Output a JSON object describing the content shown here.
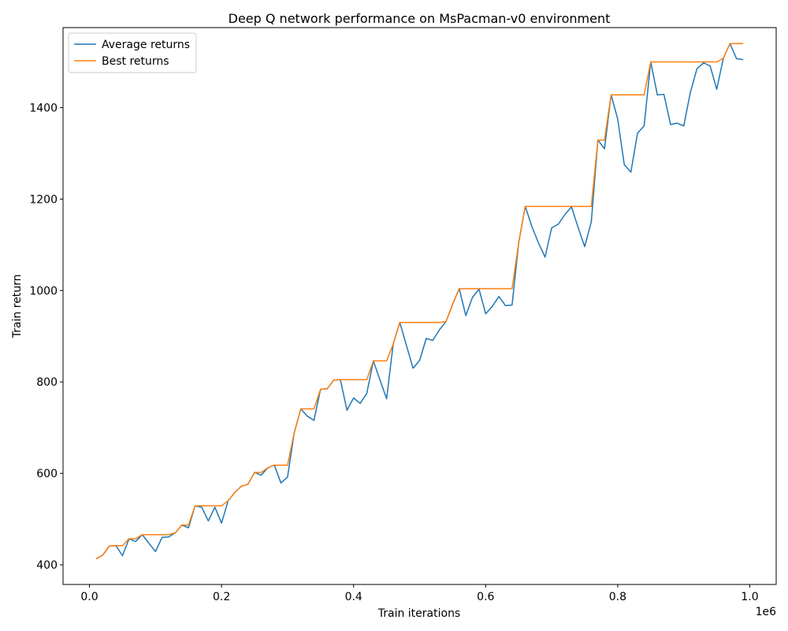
{
  "chart_data": {
    "type": "line",
    "title": "Deep Q network performance on MsPacman-v0 environment",
    "xlabel": "Train iterations",
    "ylabel": "Train return",
    "x_scale_label": "1e6",
    "xlim": [
      -0.04,
      1.04
    ],
    "ylim": [
      357,
      1575
    ],
    "x_ticks": [
      0.0,
      0.2,
      0.4,
      0.6,
      0.8,
      1.0
    ],
    "x_tick_labels": [
      "0.0",
      "0.2",
      "0.4",
      "0.6",
      "0.8",
      "1.0"
    ],
    "y_ticks": [
      400,
      600,
      800,
      1000,
      1200,
      1400
    ],
    "y_tick_labels": [
      "400",
      "600",
      "800",
      "1000",
      "1200",
      "1400"
    ],
    "grid": false,
    "legend_position": "top-left",
    "x": [
      0.01,
      0.02,
      0.03,
      0.04,
      0.05,
      0.06,
      0.07,
      0.08,
      0.09,
      0.1,
      0.11,
      0.12,
      0.13,
      0.14,
      0.15,
      0.16,
      0.17,
      0.18,
      0.19,
      0.2,
      0.21,
      0.22,
      0.23,
      0.24,
      0.25,
      0.26,
      0.27,
      0.28,
      0.29,
      0.3,
      0.31,
      0.32,
      0.33,
      0.34,
      0.35,
      0.36,
      0.37,
      0.38,
      0.39,
      0.4,
      0.41,
      0.42,
      0.43,
      0.44,
      0.45,
      0.46,
      0.47,
      0.48,
      0.49,
      0.5,
      0.51,
      0.52,
      0.53,
      0.54,
      0.55,
      0.56,
      0.57,
      0.58,
      0.59,
      0.6,
      0.61,
      0.62,
      0.63,
      0.64,
      0.65,
      0.66,
      0.67,
      0.68,
      0.69,
      0.7,
      0.71,
      0.72,
      0.73,
      0.74,
      0.75,
      0.76,
      0.77,
      0.78,
      0.79,
      0.8,
      0.81,
      0.82,
      0.83,
      0.84,
      0.85,
      0.86,
      0.87,
      0.88,
      0.89,
      0.9,
      0.91,
      0.92,
      0.93,
      0.94,
      0.95,
      0.96,
      0.97,
      0.98,
      0.99
    ],
    "series": [
      {
        "name": "Average returns",
        "color": "#1f77b4",
        "values": [
          413,
          421,
          441,
          442,
          420,
          457,
          451,
          466,
          447,
          429,
          460,
          461,
          470,
          487,
          481,
          529,
          526,
          496,
          526,
          491,
          540,
          558,
          572,
          576,
          602,
          596,
          612,
          618,
          579,
          592,
          688,
          741,
          725,
          716,
          784,
          785,
          804,
          805,
          738,
          765,
          753,
          775,
          846,
          804,
          763,
          883,
          930,
          880,
          830,
          847,
          895,
          891,
          914,
          932,
          970,
          1004,
          945,
          985,
          1003,
          949,
          965,
          987,
          967,
          968,
          1104,
          1184,
          1140,
          1104,
          1073,
          1137,
          1145,
          1166,
          1183,
          1138,
          1096,
          1150,
          1329,
          1310,
          1428,
          1375,
          1275,
          1259,
          1344,
          1360,
          1500,
          1428,
          1429,
          1363,
          1366,
          1360,
          1433,
          1485,
          1498,
          1491,
          1440,
          1508,
          1540,
          1507,
          1505
        ]
      },
      {
        "name": "Best returns",
        "color": "#ff7f0e",
        "values": [
          413,
          421,
          441,
          442,
          442,
          457,
          457,
          466,
          466,
          466,
          466,
          466,
          470,
          487,
          487,
          529,
          529,
          529,
          529,
          529,
          540,
          558,
          572,
          576,
          602,
          602,
          612,
          618,
          618,
          618,
          688,
          741,
          741,
          741,
          784,
          785,
          804,
          805,
          805,
          805,
          805,
          805,
          846,
          846,
          846,
          883,
          930,
          930,
          930,
          930,
          930,
          930,
          930,
          932,
          970,
          1004,
          1004,
          1004,
          1004,
          1004,
          1004,
          1004,
          1004,
          1004,
          1104,
          1184,
          1184,
          1184,
          1184,
          1184,
          1184,
          1184,
          1184,
          1184,
          1184,
          1184,
          1329,
          1329,
          1428,
          1428,
          1428,
          1428,
          1428,
          1428,
          1500,
          1500,
          1500,
          1500,
          1500,
          1500,
          1500,
          1500,
          1500,
          1500,
          1500,
          1508,
          1540,
          1540,
          1540
        ]
      }
    ]
  }
}
